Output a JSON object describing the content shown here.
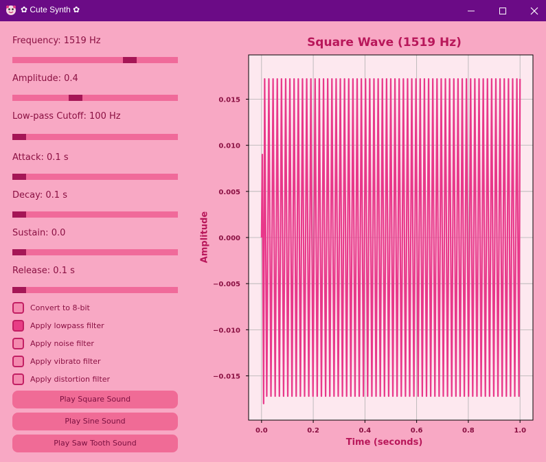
{
  "window": {
    "title": "✿ Cute Synth ✿",
    "icons": [
      "app-icon",
      "minimize-icon",
      "maximize-icon",
      "close-icon"
    ]
  },
  "controls": {
    "sliders": [
      {
        "label": "Frequency: 1519 Hz",
        "level": 0.73
      },
      {
        "label": "Amplitude: 0.4",
        "level": 0.37
      },
      {
        "label": "Low-pass Cutoff: 100 Hz",
        "level": 0.0
      },
      {
        "label": "Attack: 0.1 s",
        "level": 0.0
      },
      {
        "label": "Decay: 0.1 s",
        "level": 0.0
      },
      {
        "label": "Sustain: 0.0",
        "level": 0.0
      },
      {
        "label": "Release: 0.1 s",
        "level": 0.0
      }
    ],
    "checkboxes": [
      {
        "label": "Convert to 8-bit",
        "checked": false
      },
      {
        "label": "Apply lowpass filter",
        "checked": true
      },
      {
        "label": "Apply noise filter",
        "checked": false
      },
      {
        "label": "Apply vibrato filter",
        "checked": false
      },
      {
        "label": "Apply distortion filter",
        "checked": false
      }
    ],
    "buttons": [
      "Play Square Sound",
      "Play Sine Sound",
      "Play Saw Tooth Sound"
    ]
  },
  "colors": {
    "titlebar": "#6b0b86",
    "background": "#f8a8c4",
    "line": "#e8388a",
    "accent": "#b8175a"
  },
  "chart_data": {
    "type": "line",
    "title": "Square Wave (1519 Hz)",
    "xlabel": "Time (seconds)",
    "ylabel": "Amplitude",
    "xlim": [
      -0.05,
      1.05
    ],
    "ylim": [
      -0.0198,
      0.0198
    ],
    "xticks": [
      "0.0",
      "0.2",
      "0.4",
      "0.6",
      "0.8",
      "1.0"
    ],
    "yticks": [
      "0.015",
      "0.010",
      "0.005",
      "0.000",
      "−0.005",
      "−0.010",
      "−0.015"
    ],
    "grid": true,
    "series": [
      {
        "shape": "oscillating",
        "cycles_visible": 61,
        "x_range": [
          0.0,
          1.0
        ],
        "y_max": 0.0172,
        "y_min": -0.0172,
        "initial_min": -0.018,
        "initial_peak": 0.009
      }
    ]
  }
}
